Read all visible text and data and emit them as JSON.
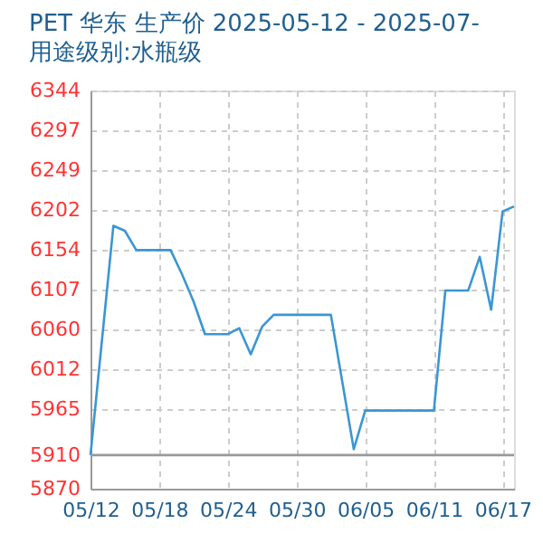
{
  "chart_data": {
    "type": "line",
    "title": "PET 华东 生产价 2025-05-12 - 2025-07-",
    "subtitle": "用途级别:水瓶级",
    "x": [
      "2025-05-12",
      "2025-05-14",
      "2025-05-15",
      "2025-05-16",
      "2025-05-19",
      "2025-05-20",
      "2025-05-21",
      "2025-05-22",
      "2025-05-24",
      "2025-05-25",
      "2025-05-26",
      "2025-05-27",
      "2025-05-28",
      "2025-06-02",
      "2025-06-04",
      "2025-06-05",
      "2025-06-11",
      "2025-06-12",
      "2025-06-14",
      "2025-06-15",
      "2025-06-16",
      "2025-06-17",
      "2025-06-18"
    ],
    "series": [
      {
        "color": "#3a96d4",
        "values": [
          5910,
          6183,
          6177,
          6154,
          6154,
          6125,
          6093,
          6054,
          6054,
          6061,
          6030,
          6063,
          6077,
          6077,
          5917,
          5963,
          5963,
          6106,
          6106,
          6146,
          6083,
          6200,
          6206
        ]
      }
    ],
    "xlim": [
      "2025-05-12",
      "2025-06-18"
    ],
    "xticks": [
      {
        "value": "2025-05-12",
        "label": "05/12"
      },
      {
        "value": "2025-05-18",
        "label": "05/18"
      },
      {
        "value": "2025-05-24",
        "label": "05/24"
      },
      {
        "value": "2025-05-30",
        "label": "05/30"
      },
      {
        "value": "2025-06-05",
        "label": "06/05"
      },
      {
        "value": "2025-06-11",
        "label": "06/11"
      },
      {
        "value": "2025-06-17",
        "label": "06/17"
      }
    ],
    "ylim": [
      5870,
      6344
    ],
    "yticks": [
      5870,
      5910,
      5965,
      6012,
      6060,
      6107,
      6154,
      6202,
      6249,
      6297,
      6344
    ],
    "ref_lines": [
      {
        "axis": "y",
        "value": 5910,
        "color": "#999999"
      }
    ],
    "grid": true,
    "marker": "none",
    "line_style": "solid"
  }
}
